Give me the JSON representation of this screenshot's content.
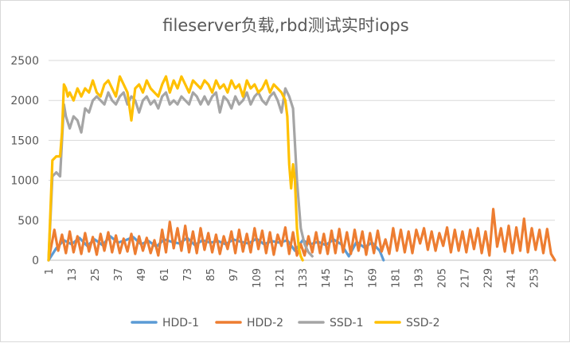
{
  "chart_data": {
    "type": "line",
    "title": "fileserver负载,rbd测试实时iops",
    "xlabel": "",
    "ylabel": "",
    "ylim": [
      0,
      2500
    ],
    "yticks": [
      "0",
      "500",
      "1000",
      "1500",
      "2000",
      "2500"
    ],
    "xlim": [
      1,
      264
    ],
    "xticks": [
      "1",
      "13",
      "25",
      "37",
      "49",
      "61",
      "73",
      "85",
      "97",
      "109",
      "121",
      "133",
      "145",
      "157",
      "169",
      "181",
      "193",
      "205",
      "217",
      "229",
      "241",
      "253"
    ],
    "grid": true,
    "legend_position": "bottom",
    "series": [
      {
        "name": "HDD-1",
        "color": "#5B9BD5",
        "x": [
          1,
          5,
          9,
          13,
          17,
          21,
          25,
          29,
          33,
          37,
          41,
          45,
          49,
          53,
          57,
          61,
          65,
          69,
          73,
          77,
          81,
          85,
          89,
          93,
          97,
          101,
          105,
          109,
          113,
          117,
          121,
          125,
          129,
          133,
          137,
          141,
          145,
          149,
          153,
          157,
          161,
          165,
          169,
          173,
          175
        ],
        "y": [
          0,
          150,
          250,
          200,
          280,
          180,
          260,
          190,
          300,
          220,
          250,
          290,
          200,
          240,
          170,
          260,
          230,
          210,
          280,
          190,
          250,
          220,
          240,
          200,
          260,
          230,
          210,
          270,
          200,
          240,
          220,
          250,
          120,
          250,
          200,
          230,
          190,
          260,
          200,
          50,
          230,
          160,
          220,
          120,
          0
        ]
      },
      {
        "name": "HDD-2",
        "color": "#ED7D31",
        "x": [
          1,
          4,
          6,
          8,
          10,
          12,
          14,
          16,
          18,
          20,
          22,
          24,
          26,
          28,
          30,
          32,
          34,
          36,
          38,
          40,
          42,
          44,
          46,
          48,
          50,
          52,
          54,
          56,
          58,
          60,
          62,
          64,
          66,
          68,
          70,
          72,
          74,
          76,
          78,
          80,
          82,
          84,
          86,
          88,
          90,
          92,
          94,
          96,
          98,
          100,
          102,
          104,
          106,
          108,
          110,
          112,
          114,
          116,
          118,
          120,
          122,
          124,
          126,
          128,
          130,
          132,
          134,
          136,
          138,
          140,
          142,
          144,
          146,
          148,
          150,
          152,
          154,
          156,
          158,
          160,
          162,
          164,
          166,
          168,
          170,
          172,
          174,
          176,
          178,
          180,
          182,
          184,
          186,
          188,
          190,
          192,
          194,
          196,
          198,
          200,
          202,
          204,
          206,
          208,
          210,
          212,
          214,
          216,
          218,
          220,
          222,
          224,
          226,
          228,
          230,
          232,
          234,
          236,
          238,
          240,
          242,
          244,
          246,
          248,
          250,
          252,
          254,
          256,
          258,
          260,
          262,
          264
        ],
        "y": [
          0,
          380,
          120,
          320,
          90,
          360,
          100,
          300,
          80,
          340,
          110,
          290,
          70,
          330,
          120,
          350,
          100,
          310,
          90,
          270,
          110,
          330,
          80,
          300,
          120,
          280,
          90,
          250,
          60,
          380,
          100,
          480,
          150,
          400,
          120,
          430,
          100,
          360,
          90,
          400,
          130,
          340,
          100,
          320,
          80,
          300,
          140,
          360,
          90,
          380,
          110,
          330,
          100,
          400,
          140,
          370,
          90,
          350,
          70,
          320,
          180,
          410,
          80,
          350,
          60,
          200,
          60,
          300,
          100,
          350,
          90,
          330,
          80,
          370,
          90,
          390,
          100,
          350,
          80,
          380,
          120,
          360,
          70,
          340,
          90,
          370,
          110,
          260,
          80,
          400,
          120,
          380,
          100,
          360,
          90,
          380,
          210,
          400,
          130,
          360,
          120,
          340,
          180,
          410,
          100,
          380,
          120,
          360,
          100,
          380,
          140,
          400,
          90,
          360,
          60,
          640,
          170,
          400,
          110,
          430,
          90,
          410,
          120,
          520,
          100,
          400,
          130,
          380,
          90,
          390,
          80,
          0
        ]
      },
      {
        "name": "SSD-1",
        "color": "#A5A5A5",
        "x": [
          1,
          3,
          5,
          7,
          9,
          10,
          12,
          14,
          16,
          18,
          20,
          22,
          24,
          26,
          28,
          30,
          32,
          34,
          36,
          38,
          40,
          42,
          44,
          46,
          48,
          50,
          52,
          54,
          56,
          58,
          60,
          62,
          64,
          66,
          68,
          70,
          72,
          74,
          76,
          78,
          80,
          82,
          84,
          86,
          88,
          90,
          92,
          94,
          96,
          98,
          100,
          102,
          104,
          106,
          108,
          110,
          112,
          114,
          116,
          118,
          120,
          122,
          124,
          126,
          128,
          130,
          132,
          134,
          136,
          138
        ],
        "y": [
          0,
          1050,
          1100,
          1050,
          1950,
          1800,
          1650,
          1800,
          1750,
          1600,
          1900,
          1850,
          2000,
          2050,
          2000,
          1950,
          2100,
          2000,
          1950,
          2050,
          2100,
          1950,
          2050,
          2000,
          1850,
          2000,
          2050,
          1950,
          2000,
          1900,
          2050,
          2100,
          1950,
          2000,
          1950,
          2050,
          2000,
          1950,
          2100,
          2050,
          1950,
          2050,
          1950,
          2050,
          2100,
          1850,
          2050,
          2000,
          1900,
          2050,
          1950,
          2000,
          2100,
          1950,
          2050,
          2100,
          2000,
          1950,
          2050,
          2100,
          2000,
          1850,
          2150,
          2050,
          1900,
          1000,
          400,
          200,
          100,
          50
        ]
      },
      {
        "name": "SSD-2",
        "color": "#FFC000",
        "x": [
          1,
          3,
          5,
          7,
          8,
          9,
          10,
          11,
          12,
          14,
          16,
          18,
          20,
          22,
          24,
          26,
          28,
          30,
          32,
          34,
          36,
          38,
          40,
          42,
          44,
          46,
          48,
          50,
          52,
          54,
          56,
          58,
          60,
          62,
          64,
          66,
          68,
          70,
          72,
          74,
          76,
          78,
          80,
          82,
          84,
          86,
          88,
          90,
          92,
          94,
          96,
          98,
          100,
          102,
          104,
          106,
          108,
          110,
          112,
          114,
          116,
          118,
          120,
          122,
          124,
          125,
          126,
          127,
          128,
          129,
          130,
          131,
          132,
          133
        ],
        "y": [
          0,
          1250,
          1300,
          1300,
          1600,
          2200,
          2150,
          2050,
          2100,
          2000,
          2150,
          2050,
          2150,
          2100,
          2250,
          2100,
          2050,
          2200,
          2250,
          2150,
          2050,
          2300,
          2200,
          2100,
          1750,
          2150,
          2200,
          2100,
          2250,
          2150,
          2100,
          2050,
          2200,
          2300,
          2100,
          2250,
          2150,
          2300,
          2200,
          2100,
          2250,
          2200,
          2150,
          2250,
          2200,
          2100,
          2250,
          2150,
          2200,
          2100,
          2250,
          2150,
          2200,
          2050,
          2250,
          2150,
          2200,
          2100,
          2150,
          2250,
          2100,
          2200,
          2150,
          2100,
          2000,
          1800,
          1200,
          900,
          1200,
          1000,
          400,
          150,
          50,
          0
        ]
      }
    ]
  }
}
